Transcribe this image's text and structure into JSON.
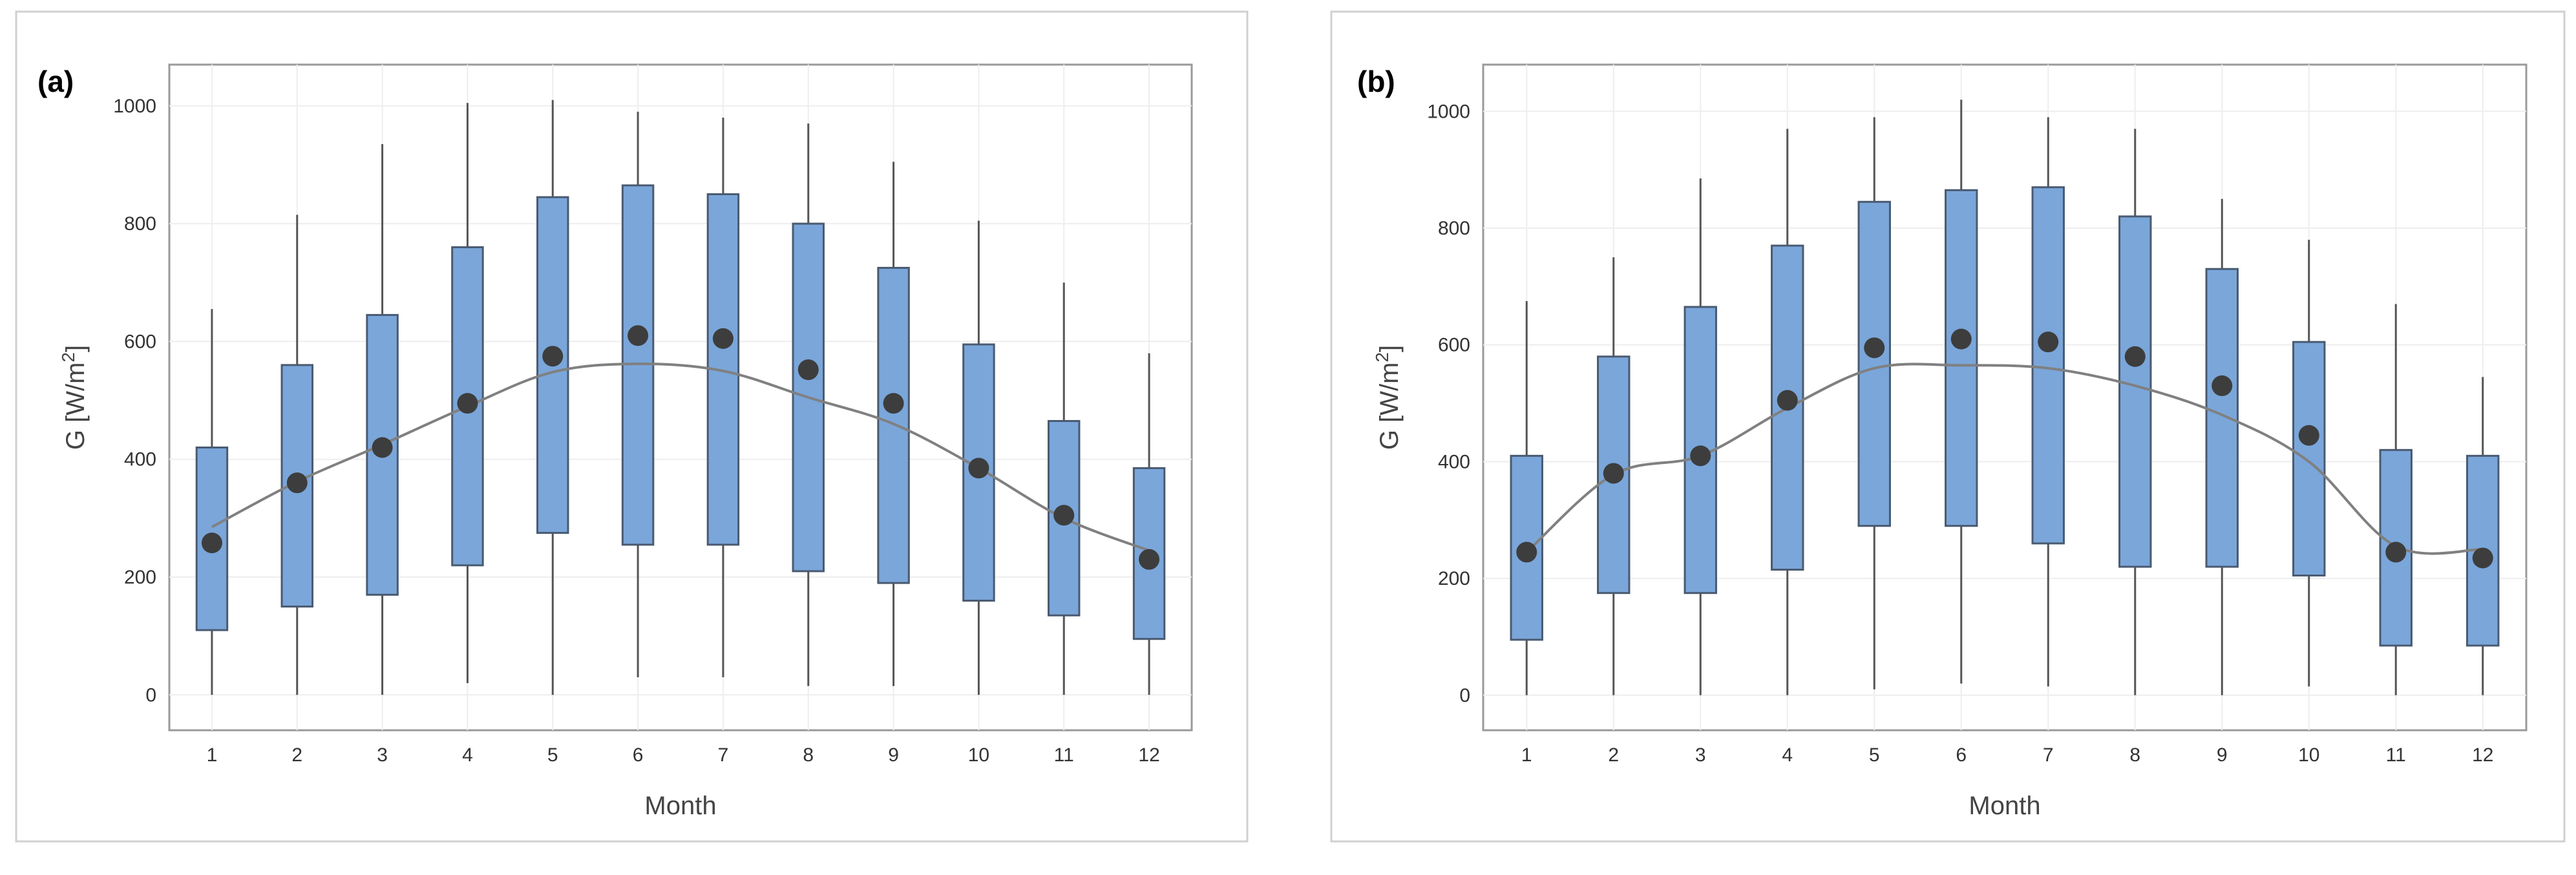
{
  "chart_data": [
    {
      "type": "box",
      "panel_label": "(a)",
      "xlabel": "Month",
      "ylabel_main": "G [W/m",
      "ylabel_sup": "2",
      "ylabel_end": "]",
      "ylim": [
        -60,
        1070
      ],
      "yticks": [
        0,
        200,
        400,
        600,
        800,
        1000
      ],
      "categories": [
        "1",
        "2",
        "3",
        "4",
        "5",
        "6",
        "7",
        "8",
        "9",
        "10",
        "11",
        "12"
      ],
      "series": [
        {
          "name": "whisker_low",
          "values": [
            0,
            0,
            0,
            20,
            0,
            30,
            30,
            15,
            15,
            0,
            0,
            0
          ]
        },
        {
          "name": "q1",
          "values": [
            110,
            150,
            170,
            220,
            275,
            255,
            255,
            210,
            190,
            160,
            135,
            95
          ]
        },
        {
          "name": "q3",
          "values": [
            420,
            560,
            645,
            760,
            845,
            865,
            850,
            800,
            725,
            595,
            465,
            385
          ]
        },
        {
          "name": "whisker_high",
          "values": [
            655,
            815,
            935,
            1005,
            1010,
            990,
            980,
            970,
            905,
            805,
            700,
            580
          ]
        },
        {
          "name": "mean",
          "values": [
            258,
            360,
            420,
            495,
            575,
            610,
            605,
            552,
            495,
            385,
            305,
            230
          ]
        },
        {
          "name": "trend",
          "values": [
            285,
            362,
            425,
            490,
            548,
            562,
            550,
            505,
            460,
            385,
            300,
            245
          ]
        }
      ]
    },
    {
      "type": "box",
      "panel_label": "(b)",
      "xlabel": "Month",
      "ylabel_main": "G [W/m",
      "ylabel_sup": "2",
      "ylabel_end": "]",
      "ylim": [
        -60,
        1080
      ],
      "yticks": [
        0,
        200,
        400,
        600,
        800,
        1000
      ],
      "categories": [
        "1",
        "2",
        "3",
        "4",
        "5",
        "6",
        "7",
        "8",
        "9",
        "10",
        "11",
        "12"
      ],
      "series": [
        {
          "name": "whisker_low",
          "values": [
            0,
            0,
            0,
            0,
            10,
            20,
            15,
            0,
            0,
            15,
            0,
            0
          ]
        },
        {
          "name": "q1",
          "values": [
            95,
            175,
            175,
            215,
            290,
            290,
            260,
            220,
            220,
            205,
            85,
            85
          ]
        },
        {
          "name": "q3",
          "values": [
            410,
            580,
            665,
            770,
            845,
            865,
            870,
            820,
            730,
            605,
            420,
            410
          ]
        },
        {
          "name": "whisker_high",
          "values": [
            675,
            750,
            885,
            970,
            990,
            1020,
            990,
            970,
            850,
            780,
            670,
            545
          ]
        },
        {
          "name": "mean",
          "values": [
            245,
            380,
            410,
            505,
            595,
            610,
            605,
            580,
            530,
            445,
            245,
            235
          ]
        },
        {
          "name": "trend",
          "values": [
            245,
            378,
            410,
            492,
            560,
            565,
            560,
            530,
            480,
            400,
            255,
            250
          ]
        }
      ]
    }
  ]
}
